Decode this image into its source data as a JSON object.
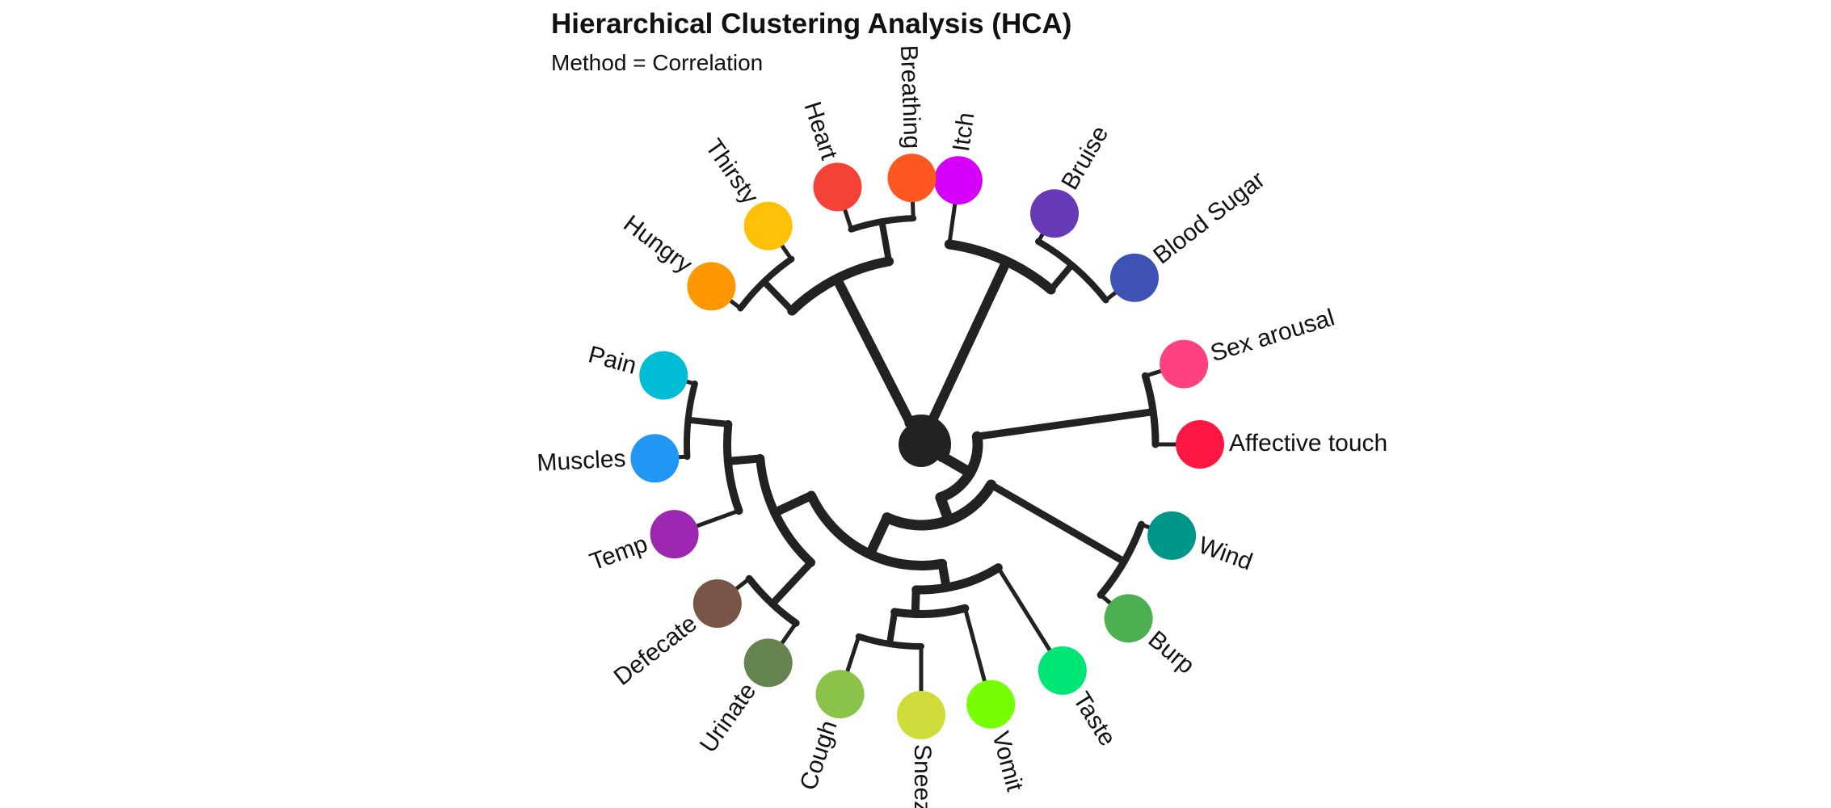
{
  "title": "Hierarchical Clustering Analysis (HCA)",
  "subtitle": "Method = Correlation",
  "leaves": [
    {
      "label": "Itch",
      "color": "#d500f9"
    },
    {
      "label": "Bruise",
      "color": "#673ab7"
    },
    {
      "label": "Blood Sugar",
      "color": "#3f51b5"
    },
    {
      "label": "Sex arousal",
      "color": "#ff4081"
    },
    {
      "label": "Affective touch",
      "color": "#ff1744"
    },
    {
      "label": "Wind",
      "color": "#009688"
    },
    {
      "label": "Burp",
      "color": "#4caf50"
    },
    {
      "label": "Taste",
      "color": "#00e676"
    },
    {
      "label": "Vomit",
      "color": "#76ff03"
    },
    {
      "label": "Sneeze",
      "color": "#cddc39"
    },
    {
      "label": "Cough",
      "color": "#8bc34a"
    },
    {
      "label": "Urinate",
      "color": "#64834f"
    },
    {
      "label": "Defecate",
      "color": "#795548"
    },
    {
      "label": "Temp",
      "color": "#9c27b0"
    },
    {
      "label": "Muscles",
      "color": "#2196f3"
    },
    {
      "label": "Pain",
      "color": "#00bcd4"
    },
    {
      "label": "Hungry",
      "color": "#ff9800"
    },
    {
      "label": "Thirsty",
      "color": "#ffc107"
    },
    {
      "label": "Heart",
      "color": "#f44336"
    },
    {
      "label": "Breathing",
      "color": "#ff5722"
    }
  ],
  "branch_color": "#222222"
}
